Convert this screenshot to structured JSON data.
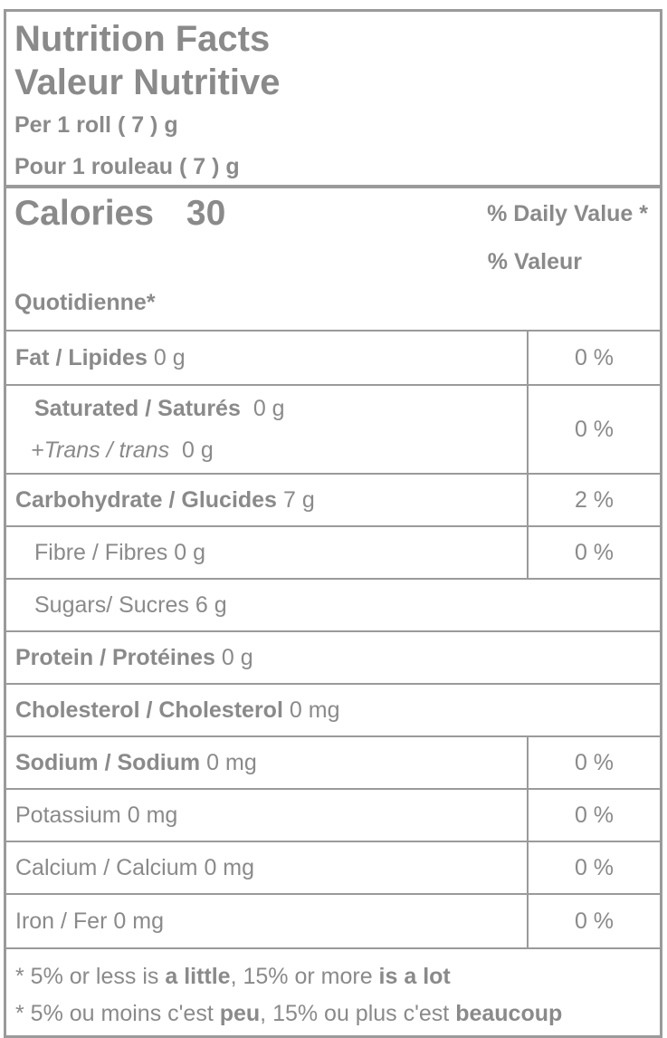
{
  "colors": {
    "text": "#8a8a8a",
    "border": "#9a9a9a"
  },
  "header": {
    "title_en": "Nutrition Facts",
    "title_fr": "Valeur Nutritive",
    "serving_en": "Per 1 roll ( 7 ) g",
    "serving_fr": "Pour 1 rouleau ( 7 ) g"
  },
  "calories": {
    "label": "Calories",
    "value": "30"
  },
  "daily_value_header": {
    "line1": "% Daily Value *",
    "line2": "% Valeur",
    "line3": "Quotidienne*"
  },
  "nutrients": {
    "fat": {
      "name": "Fat / Lipides",
      "amount": "0 g",
      "dv": "0 %"
    },
    "saturated": {
      "name": "Saturated / Saturés",
      "amount": "0 g"
    },
    "trans": {
      "name": "+Trans / trans",
      "amount": "0 g"
    },
    "saturated_trans_dv": "0 %",
    "carbohydrate": {
      "name": "Carbohydrate / Glucides",
      "amount": "7 g",
      "dv": "2 %"
    },
    "fibre": {
      "name": "Fibre / Fibres",
      "amount": "0 g",
      "dv": "0 %"
    },
    "sugars": {
      "name": "Sugars/ Sucres",
      "amount": "6 g"
    },
    "protein": {
      "name": "Protein / Protéines",
      "amount": "0 g"
    },
    "cholesterol": {
      "name": "Cholesterol / Cholesterol",
      "amount": "0 mg"
    },
    "sodium": {
      "name": "Sodium / Sodium",
      "amount": "0 mg",
      "dv": "0 %"
    },
    "potassium": {
      "name": "Potassium",
      "amount": "0 mg",
      "dv": "0 %"
    },
    "calcium": {
      "name": "Calcium / Calcium",
      "amount": "0 mg",
      "dv": "0 %"
    },
    "iron": {
      "name": "Iron / Fer",
      "amount": "0 mg",
      "dv": "0 %"
    }
  },
  "footnotes": {
    "en": {
      "p1": "* 5% or less is ",
      "b1": "a little",
      "p2": ", 15% or more ",
      "b2": "is a lot"
    },
    "fr": {
      "p1": "* 5% ou moins c'est ",
      "b1": "peu",
      "p2": ", 15% ou plus c'est ",
      "b2": "beaucoup"
    }
  }
}
